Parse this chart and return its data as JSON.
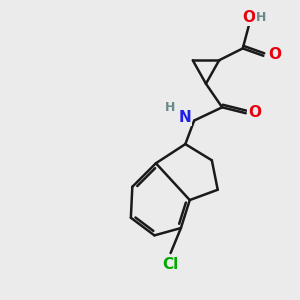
{
  "bg_color": "#ebebeb",
  "bond_color": "#1a1a1a",
  "bond_width": 1.8,
  "atom_colors": {
    "O": "#e8000e",
    "N": "#2020e8",
    "Cl": "#00aa00",
    "H": "#6a8a8a",
    "C": "#1a1a1a"
  },
  "font_size_large": 11,
  "font_size_small": 9
}
